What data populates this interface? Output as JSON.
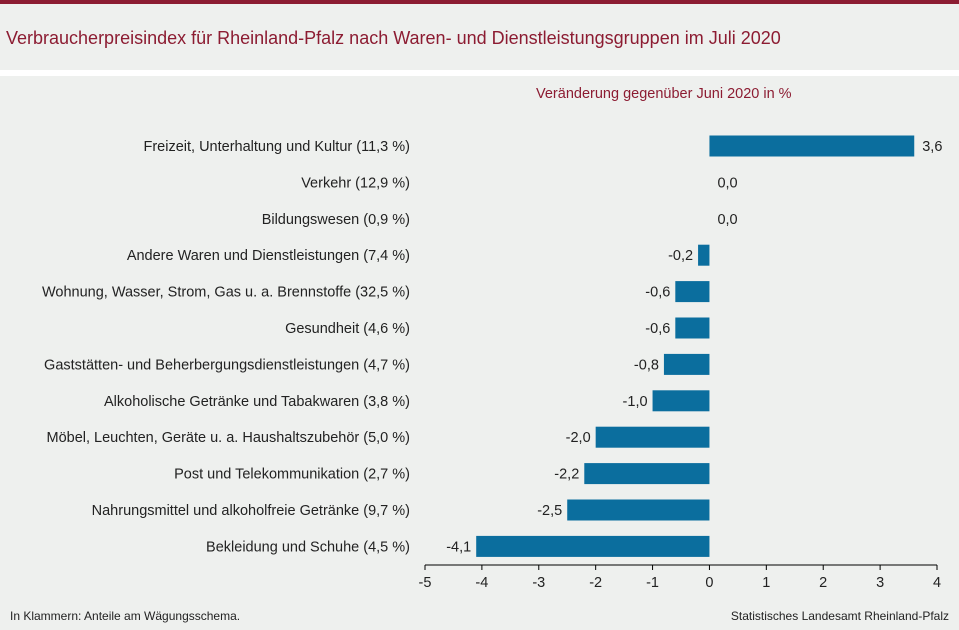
{
  "header": {
    "title": "Verbraucherpreisindex für Rheinland-Pfalz nach Waren- und Dienstleistungsgruppen im Juli 2020"
  },
  "colors": {
    "accent": "#8c1c32",
    "bar": "#0b6e9e",
    "background": "#eef0ee",
    "text": "#222222"
  },
  "chart_data": {
    "type": "bar",
    "orientation": "horizontal",
    "title": "Verbraucherpreisindex für Rheinland-Pfalz nach Waren- und Dienstleistungsgruppen im Juli 2020",
    "subtitle": "Veränderung gegenüber Juni 2020 in %",
    "categories": [
      "Freizeit, Unterhaltung und Kultur (11,3 %)",
      "Verkehr (12,9 %)",
      "Bildungswesen (0,9 %)",
      "Andere Waren und Dienstleistungen (7,4 %)",
      "Wohnung, Wasser, Strom, Gas u. a. Brennstoffe (32,5 %)",
      "Gesundheit (4,6 %)",
      "Gaststätten- und Beherbergungsdienstleistungen (4,7 %)",
      "Alkoholische Getränke und Tabakwaren (3,8 %)",
      "Möbel, Leuchten, Geräte u. a. Haushaltszubehör (5,0 %)",
      "Post und Telekommunikation (2,7 %)",
      "Nahrungsmittel und alkoholfreie Getränke (9,7 %)",
      "Bekleidung und Schuhe (4,5 %)"
    ],
    "values": [
      3.6,
      0.0,
      0.0,
      -0.2,
      -0.6,
      -0.6,
      -0.8,
      -1.0,
      -2.0,
      -2.2,
      -2.5,
      -4.1
    ],
    "value_labels": [
      "3,6",
      "0,0",
      "0,0",
      "-0,2",
      "-0,6",
      "-0,6",
      "-0,8",
      "-1,0",
      "-2,0",
      "-2,2",
      "-2,5",
      "-4,1"
    ],
    "xlim": [
      -5,
      4
    ],
    "xticks": [
      -5,
      -4,
      -3,
      -2,
      -1,
      0,
      1,
      2,
      3,
      4
    ],
    "xtick_labels": [
      "-5",
      "-4",
      "-3",
      "-2",
      "-1",
      "0",
      "1",
      "2",
      "3",
      "4"
    ],
    "grid": false,
    "legend": "none"
  },
  "footer": {
    "note": "In Klammern: Anteile am Wägungsschema.",
    "source": "Statistisches Landesamt Rheinland-Pfalz"
  }
}
